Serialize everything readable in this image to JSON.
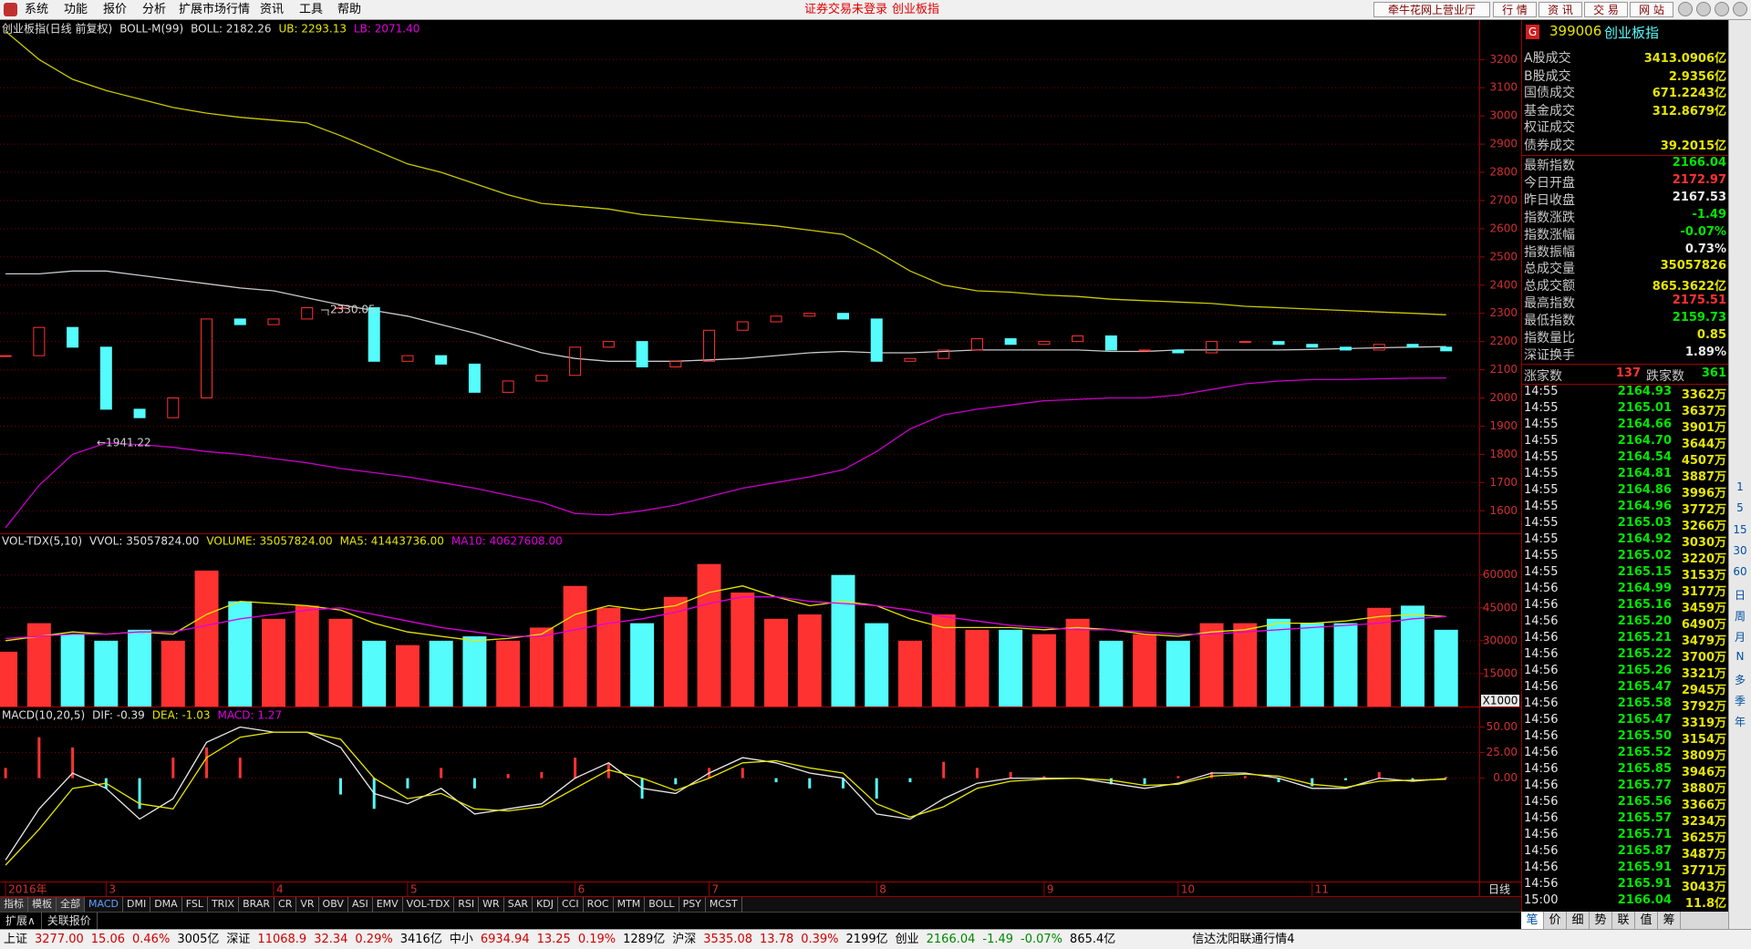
{
  "menu": {
    "items": [
      "系统",
      "功能",
      "报价",
      "分析",
      "扩展市场行情",
      "资讯",
      "工具",
      "帮助"
    ],
    "notice": "证券交易未登录",
    "current": "创业板指",
    "buttons": [
      "牵牛花网上营业厅",
      "行 情",
      "资 讯",
      "交 易",
      "网 站"
    ]
  },
  "chart_data": [
    {
      "type": "candlestick",
      "legend": [
        {
          "text": "创业板指(日线 前复权)",
          "color": "#e0e0e0"
        },
        {
          "text": "BOLL-M(99)",
          "color": "#e0e0e0"
        },
        {
          "text": "BOLL: 2182.26",
          "color": "#e0e0e0"
        },
        {
          "text": "UB: 2293.13",
          "color": "#e6e600"
        },
        {
          "text": "LB: 2071.40",
          "color": "#e000e0"
        }
      ],
      "annotations": [
        "2330.05",
        "←1941.22"
      ],
      "period": "日线",
      "categories": [
        "2016年",
        null,
        null,
        "3",
        null,
        null,
        null,
        null,
        "4",
        null,
        null,
        null,
        "5",
        null,
        null,
        null,
        null,
        "6",
        null,
        null,
        null,
        "7",
        null,
        null,
        null,
        null,
        "8",
        null,
        null,
        null,
        null,
        "9",
        null,
        null,
        null,
        "10",
        null,
        null,
        null,
        "11",
        null,
        null,
        null,
        null
      ],
      "ylim": [
        1520,
        3340
      ],
      "yticks": [
        1600,
        1700,
        1800,
        1900,
        2000,
        2100,
        2200,
        2300,
        2400,
        2500,
        2600,
        2700,
        2800,
        2900,
        3000,
        3100,
        3200
      ],
      "up_color": "#ff3232",
      "down_color": "#54fcfc",
      "close": [
        2150,
        2250,
        2180,
        1960,
        1930,
        2000,
        2280,
        2260,
        2280,
        2320,
        2320,
        2130,
        2150,
        2120,
        2020,
        2060,
        2080,
        2180,
        2200,
        2110,
        2130,
        2240,
        2270,
        2290,
        2300,
        2280,
        2130,
        2140,
        2170,
        2210,
        2190,
        2200,
        2220,
        2170,
        2170,
        2160,
        2200,
        2200,
        2190,
        2180,
        2170,
        2190,
        2180,
        2167
      ],
      "boll": {
        "color": "#c8c8c8",
        "values": [
          2440,
          2440,
          2450,
          2450,
          2435,
          2420,
          2405,
          2390,
          2380,
          2355,
          2330,
          2310,
          2290,
          2260,
          2230,
          2195,
          2160,
          2140,
          2130,
          2130,
          2130,
          2135,
          2140,
          2150,
          2160,
          2165,
          2160,
          2160,
          2165,
          2170,
          2170,
          2170,
          2170,
          2165,
          2165,
          2170,
          2170,
          2170,
          2170,
          2172,
          2175,
          2178,
          2180,
          2182
        ]
      },
      "ub": {
        "color": "#c8c800",
        "values": [
          3300,
          3200,
          3130,
          3090,
          3060,
          3030,
          3010,
          2995,
          2985,
          2975,
          2930,
          2880,
          2830,
          2800,
          2760,
          2720,
          2690,
          2680,
          2670,
          2650,
          2640,
          2630,
          2620,
          2610,
          2595,
          2580,
          2520,
          2450,
          2400,
          2380,
          2375,
          2365,
          2360,
          2350,
          2345,
          2340,
          2335,
          2325,
          2320,
          2315,
          2310,
          2305,
          2300,
          2295
        ]
      },
      "lb": {
        "color": "#c800c8",
        "values": [
          1540,
          1690,
          1800,
          1840,
          1835,
          1825,
          1810,
          1800,
          1785,
          1770,
          1750,
          1735,
          1720,
          1700,
          1680,
          1655,
          1630,
          1590,
          1585,
          1600,
          1620,
          1650,
          1680,
          1700,
          1720,
          1745,
          1810,
          1890,
          1940,
          1960,
          1975,
          1990,
          1995,
          2000,
          2000,
          2010,
          2030,
          2050,
          2060,
          2065,
          2065,
          2068,
          2070,
          2071
        ]
      }
    },
    {
      "type": "bar",
      "legend": [
        {
          "text": "VOL-TDX(5,10)",
          "color": "#e0e0e0"
        },
        {
          "text": "VVOL: 35057824.00",
          "color": "#e0e0e0"
        },
        {
          "text": "VOLUME: 35057824.00",
          "color": "#e6e600"
        },
        {
          "text": "MA5: 41443736.00",
          "color": "#e6e600"
        },
        {
          "text": "MA10: 40627608.00",
          "color": "#e000e0"
        }
      ],
      "unit_label": "X1000",
      "ylim": [
        0,
        79000
      ],
      "yticks": [
        15000,
        30000,
        45000,
        60000
      ],
      "values": [
        25000,
        38000,
        33000,
        30000,
        35000,
        30000,
        62000,
        48000,
        40000,
        46000,
        40000,
        30000,
        28000,
        30000,
        32000,
        30000,
        36000,
        55000,
        45000,
        38000,
        50000,
        65000,
        52000,
        40000,
        42000,
        60000,
        38000,
        30000,
        42000,
        35000,
        35000,
        33000,
        40000,
        30000,
        33000,
        30000,
        38000,
        38000,
        40000,
        38000,
        38000,
        45000,
        46000,
        35000
      ],
      "ma5": {
        "color": "#e6e600",
        "values": [
          30000,
          32000,
          34000,
          33000,
          34000,
          33000,
          42000,
          48000,
          47000,
          46000,
          44000,
          38000,
          34000,
          32000,
          30000,
          31000,
          33000,
          42000,
          46000,
          44000,
          46000,
          52000,
          55000,
          50000,
          46000,
          48000,
          46000,
          40000,
          36000,
          36000,
          36000,
          35000,
          36000,
          35000,
          33000,
          32000,
          34000,
          35000,
          38000,
          38000,
          39000,
          41000,
          42000,
          41000
        ]
      },
      "ma10": {
        "color": "#e000e0",
        "values": [
          31000,
          32000,
          33000,
          33000,
          34000,
          34000,
          37000,
          40000,
          42000,
          44000,
          45000,
          42000,
          39000,
          36000,
          34000,
          32000,
          32000,
          35000,
          38000,
          40000,
          43000,
          47000,
          50000,
          50000,
          48000,
          47000,
          46000,
          44000,
          41000,
          39000,
          37000,
          36000,
          35000,
          35000,
          34000,
          33000,
          33000,
          34000,
          35000,
          36000,
          37000,
          38000,
          40000,
          41000
        ]
      }
    },
    {
      "type": "line",
      "legend": [
        {
          "text": "MACD(10,20,5)",
          "color": "#e0e0e0"
        },
        {
          "text": "DIF: -0.39",
          "color": "#e0e0e0"
        },
        {
          "text": "DEA: -1.03",
          "color": "#e6e600"
        },
        {
          "text": "MACD: 1.27",
          "color": "#e000e0"
        }
      ],
      "ylim": [
        -101,
        70
      ],
      "yticks": [
        {
          "value": 0,
          "label": "0.00"
        },
        {
          "value": 25,
          "label": "25.00"
        },
        {
          "value": 50,
          "label": "50.00"
        }
      ],
      "dif": {
        "color": "#e8e8e8",
        "values": [
          -80,
          -30,
          5,
          -10,
          -40,
          -20,
          35,
          50,
          45,
          45,
          30,
          -15,
          -25,
          -10,
          -35,
          -30,
          -25,
          0,
          15,
          -10,
          -15,
          5,
          20,
          15,
          5,
          0,
          -35,
          -40,
          -20,
          -5,
          0,
          0,
          0,
          -5,
          -10,
          -5,
          5,
          5,
          0,
          -10,
          -10,
          0,
          -3,
          -0.39
        ]
      },
      "dea": {
        "color": "#e6e600",
        "values": [
          -85,
          -50,
          -10,
          -5,
          -25,
          -30,
          20,
          40,
          45,
          45,
          38,
          0,
          -20,
          -15,
          -30,
          -32,
          -28,
          -10,
          8,
          0,
          -12,
          0,
          15,
          17,
          10,
          5,
          -25,
          -38,
          -28,
          -10,
          -3,
          -1,
          0,
          -2,
          -7,
          -6,
          2,
          4,
          2,
          -6,
          -9,
          -3,
          -2,
          -1.03
        ]
      },
      "macd": {
        "up_color": "#ff3232",
        "down_color": "#54fcfc",
        "values": [
          10,
          40,
          30,
          -10,
          -30,
          20,
          30,
          20,
          0,
          0,
          -16,
          -30,
          -10,
          10,
          -10,
          4,
          6,
          20,
          14,
          -20,
          -6,
          10,
          10,
          -4,
          -10,
          -10,
          -20,
          -4,
          16,
          10,
          6,
          2,
          0,
          -6,
          -6,
          2,
          6,
          2,
          -4,
          -8,
          -2,
          6,
          -2,
          1.27
        ]
      }
    }
  ],
  "tabs": [
    "指标",
    "模板",
    "全部",
    "MACD",
    "DMI",
    "DMA",
    "FSL",
    "TRIX",
    "BRAR",
    "CR",
    "VR",
    "OBV",
    "ASI",
    "EMV",
    "VOL-TDX",
    "RSI",
    "WR",
    "SAR",
    "KDJ",
    "CCI",
    "ROC",
    "MTM",
    "BOLL",
    "PSY",
    "MCST"
  ],
  "sub_tabs": [
    "扩展∧",
    "关联报价"
  ],
  "panel": {
    "badge": "G",
    "code": "399006",
    "name": "创业板指",
    "quote": [
      {
        "label": "A股成交",
        "value": "3413.0906亿"
      },
      {
        "label": "B股成交",
        "value": "2.9356亿"
      },
      {
        "label": "国债成交",
        "value": "671.2243亿"
      },
      {
        "label": "基金成交",
        "value": "312.8679亿"
      },
      {
        "label": "权证成交"
      },
      {
        "label": "债券成交",
        "value": "39.2015亿"
      }
    ],
    "stats": [
      {
        "label": "最新指数",
        "value": "2166.04",
        "color": "#00e600"
      },
      {
        "label": "今日开盘",
        "value": "2172.97",
        "color": "#ff3232"
      },
      {
        "label": "昨日收盘",
        "value": "2167.53",
        "color": "#e8e8e8"
      },
      {
        "label": "指数涨跌",
        "value": "-1.49",
        "color": "#00e600"
      },
      {
        "label": "指数涨幅",
        "value": "-0.07%",
        "color": "#00e600"
      },
      {
        "label": "指数振幅",
        "value": "0.73%",
        "color": "#e8e8e8"
      },
      {
        "label": "总成交量",
        "value": "35057826",
        "color": "#e6e600"
      },
      {
        "label": "总成交额",
        "value": "865.3622亿",
        "color": "#e6e600"
      },
      {
        "label": "最高指数",
        "value": "2175.51",
        "color": "#ff3232"
      },
      {
        "label": "最低指数",
        "value": "2159.73",
        "color": "#00e600"
      },
      {
        "label": "指数量比",
        "value": "0.85",
        "color": "#e6e600"
      },
      {
        "label": "深证换手",
        "value": "1.89%",
        "color": "#e8e8e8"
      }
    ],
    "breadth": {
      "up_label": "涨家数",
      "up": "137",
      "down_label": "跌家数",
      "down": "361"
    },
    "ticks": [
      [
        "14:55",
        "2164.93",
        "3362万"
      ],
      [
        "14:55",
        "2165.01",
        "3637万"
      ],
      [
        "14:55",
        "2164.66",
        "3901万"
      ],
      [
        "14:55",
        "2164.70",
        "3644万"
      ],
      [
        "14:55",
        "2164.54",
        "4507万"
      ],
      [
        "14:55",
        "2164.81",
        "3887万"
      ],
      [
        "14:55",
        "2164.86",
        "3996万"
      ],
      [
        "14:55",
        "2164.96",
        "3772万"
      ],
      [
        "14:55",
        "2165.03",
        "3266万"
      ],
      [
        "14:55",
        "2164.92",
        "3030万"
      ],
      [
        "14:55",
        "2165.02",
        "3220万"
      ],
      [
        "14:55",
        "2165.15",
        "3153万"
      ],
      [
        "14:56",
        "2164.99",
        "3177万"
      ],
      [
        "14:56",
        "2165.16",
        "3459万"
      ],
      [
        "14:56",
        "2165.20",
        "6490万"
      ],
      [
        "14:56",
        "2165.21",
        "3479万"
      ],
      [
        "14:56",
        "2165.22",
        "3700万"
      ],
      [
        "14:56",
        "2165.26",
        "3321万"
      ],
      [
        "14:56",
        "2165.47",
        "2945万"
      ],
      [
        "14:56",
        "2165.58",
        "3792万"
      ],
      [
        "14:56",
        "2165.47",
        "3319万"
      ],
      [
        "14:56",
        "2165.50",
        "3154万"
      ],
      [
        "14:56",
        "2165.52",
        "3809万"
      ],
      [
        "14:56",
        "2165.85",
        "3946万"
      ],
      [
        "14:56",
        "2165.77",
        "3880万"
      ],
      [
        "14:56",
        "2165.56",
        "3366万"
      ],
      [
        "14:56",
        "2165.57",
        "3234万"
      ],
      [
        "14:56",
        "2165.71",
        "3625万"
      ],
      [
        "14:56",
        "2165.87",
        "3487万"
      ],
      [
        "14:56",
        "2165.91",
        "3771万"
      ],
      [
        "14:56",
        "2165.91",
        "3043万"
      ],
      [
        "15:00",
        "2166.04",
        "11.8亿"
      ]
    ],
    "tabs": [
      "笔",
      "价",
      "细",
      "势",
      "联",
      "值",
      "筹"
    ]
  },
  "side_periods": [
    "1",
    "5",
    "15",
    "30",
    "60",
    "日",
    "周",
    "月",
    "N",
    "多",
    "季",
    "年"
  ],
  "status": {
    "items": [
      {
        "text": "上证",
        "color": "#000"
      },
      {
        "text": "3277.00",
        "color": "#d00000"
      },
      {
        "text": "15.06",
        "color": "#d00000"
      },
      {
        "text": "0.46%",
        "color": "#d00000"
      },
      {
        "text": "3005亿",
        "color": "#000"
      },
      {
        "text": "深证",
        "color": "#000"
      },
      {
        "text": "11068.9",
        "color": "#d00000"
      },
      {
        "text": "32.34",
        "color": "#d00000"
      },
      {
        "text": "0.29%",
        "color": "#d00000"
      },
      {
        "text": "3416亿",
        "color": "#000"
      },
      {
        "text": "中小",
        "color": "#000"
      },
      {
        "text": "6934.94",
        "color": "#d00000"
      },
      {
        "text": "13.25",
        "color": "#d00000"
      },
      {
        "text": "0.19%",
        "color": "#d00000"
      },
      {
        "text": "1289亿",
        "color": "#000"
      },
      {
        "text": "沪深",
        "color": "#000"
      },
      {
        "text": "3535.08",
        "color": "#d00000"
      },
      {
        "text": "13.78",
        "color": "#d00000"
      },
      {
        "text": "0.39%",
        "color": "#d00000"
      },
      {
        "text": "2199亿",
        "color": "#000"
      },
      {
        "text": "创业",
        "color": "#000"
      },
      {
        "text": "2166.04",
        "color": "#008800"
      },
      {
        "text": "-1.49",
        "color": "#008800"
      },
      {
        "text": "-0.07%",
        "color": "#008800"
      },
      {
        "text": "865.4亿",
        "color": "#000"
      }
    ],
    "server": "信达沈阳联通行情4"
  }
}
